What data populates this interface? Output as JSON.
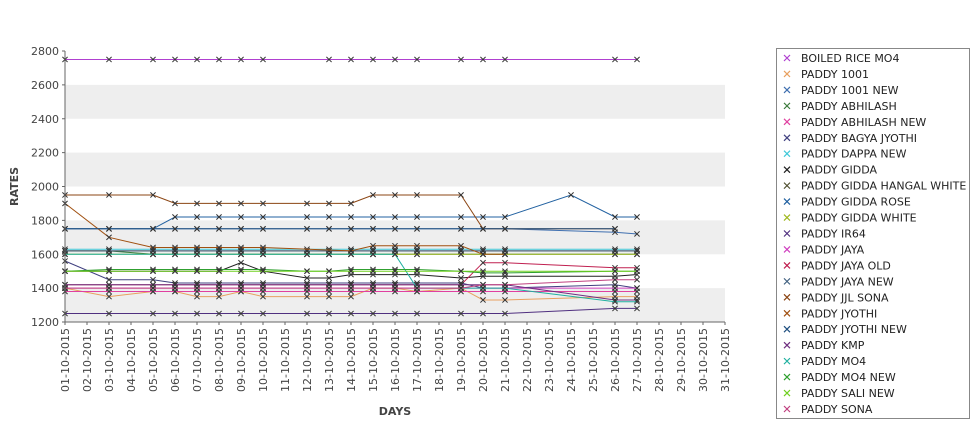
{
  "chart_data": {
    "type": "line",
    "xlabel": "DAYS",
    "ylabel": "RATES",
    "ylim": [
      1200,
      2800
    ],
    "yticks": [
      1200,
      1400,
      1600,
      1800,
      2000,
      2200,
      2400,
      2600,
      2800
    ],
    "x": [
      "01-10-2015",
      "02-10-2015",
      "03-10-2015",
      "04-10-2015",
      "05-10-2015",
      "06-10-2015",
      "07-10-2015",
      "08-10-2015",
      "09-10-2015",
      "10-10-2015",
      "11-10-2015",
      "12-10-2015",
      "13-10-2015",
      "14-10-2015",
      "15-10-2015",
      "16-10-2015",
      "17-10-2015",
      "18-10-2015",
      "19-10-2015",
      "20-10-2015",
      "21-10-2015",
      "22-10-2015",
      "23-10-2015",
      "24-10-2015",
      "25-10-2015",
      "26-10-2015",
      "27-10-2015",
      "28-10-2015",
      "29-10-2015",
      "30-10-2015",
      "31-10-2015"
    ],
    "grid": "alternating horizontal bands",
    "legend_position": "right",
    "series": [
      {
        "name": "BOILED RICE MO4",
        "color": "#b040d0",
        "values": [
          2750,
          null,
          2750,
          null,
          2750,
          2750,
          2750,
          2750,
          2750,
          2750,
          null,
          null,
          2750,
          2750,
          2750,
          2750,
          2750,
          null,
          2750,
          2750,
          2750,
          null,
          null,
          null,
          null,
          2750,
          2750,
          null,
          null,
          null,
          null
        ]
      },
      {
        "name": "PADDY 1001",
        "color": "#e8a060",
        "values": [
          1400,
          null,
          1350,
          null,
          1380,
          1380,
          1350,
          1350,
          1380,
          1350,
          null,
          1350,
          1350,
          1350,
          1400,
          1400,
          1380,
          null,
          1400,
          1330,
          1330,
          null,
          null,
          null,
          null,
          1350,
          1350,
          null,
          null,
          null,
          null
        ]
      },
      {
        "name": "PADDY 1001 NEW",
        "color": "#4070b0",
        "values": [
          1750,
          null,
          1750,
          null,
          1750,
          1750,
          1750,
          1750,
          1750,
          1750,
          null,
          1750,
          1750,
          1750,
          1750,
          1750,
          1750,
          null,
          1750,
          1750,
          1750,
          null,
          null,
          null,
          null,
          1730,
          1720,
          null,
          null,
          null,
          null
        ]
      },
      {
        "name": "PADDY ABHILASH",
        "color": "#3a7a3a",
        "values": [
          1620,
          null,
          1620,
          null,
          1600,
          1600,
          1600,
          1600,
          1600,
          1600,
          null,
          1600,
          1600,
          1600,
          1600,
          1600,
          1600,
          null,
          1600,
          1600,
          1600,
          null,
          null,
          null,
          null,
          1600,
          1600,
          null,
          null,
          null,
          null
        ]
      },
      {
        "name": "PADDY ABHILASH NEW",
        "color": "#e040a0",
        "values": [
          1380,
          null,
          1380,
          null,
          1380,
          1380,
          1380,
          1380,
          1380,
          1380,
          null,
          1380,
          1380,
          1380,
          1380,
          1380,
          1380,
          null,
          1380,
          1380,
          1380,
          null,
          null,
          null,
          null,
          1380,
          1380,
          null,
          null,
          null,
          null
        ]
      },
      {
        "name": "PADDY BAGYA JYOTHI",
        "color": "#404080",
        "values": [
          1560,
          null,
          1450,
          null,
          1450,
          1430,
          1430,
          1430,
          1430,
          1430,
          null,
          1430,
          1430,
          1430,
          1430,
          1430,
          1430,
          null,
          1430,
          1400,
          1400,
          null,
          null,
          null,
          null,
          1420,
          1400,
          null,
          null,
          null,
          null
        ]
      },
      {
        "name": "PADDY DAPPA NEW",
        "color": "#40c8d8",
        "values": [
          1630,
          null,
          1630,
          null,
          1630,
          1630,
          1630,
          1630,
          1630,
          1630,
          null,
          1630,
          1630,
          1630,
          1630,
          1630,
          1630,
          null,
          1630,
          1630,
          1630,
          null,
          null,
          null,
          null,
          1630,
          1630,
          null,
          null,
          null,
          null
        ]
      },
      {
        "name": "PADDY GIDDA",
        "color": "#202020",
        "values": [
          1500,
          null,
          1500,
          null,
          1500,
          1500,
          1500,
          1500,
          1550,
          1500,
          null,
          1460,
          1460,
          1480,
          1480,
          1480,
          1480,
          null,
          1460,
          1470,
          1470,
          null,
          null,
          null,
          null,
          1470,
          1480,
          null,
          null,
          null,
          null
        ]
      },
      {
        "name": "PADDY GIDDA HANGAL WHITE",
        "color": "#505030",
        "values": [
          1620,
          null,
          1620,
          null,
          1620,
          1620,
          1620,
          1620,
          1620,
          1620,
          null,
          1620,
          1620,
          1620,
          1620,
          1620,
          1620,
          null,
          1620,
          1620,
          1620,
          null,
          null,
          null,
          null,
          1620,
          1620,
          null,
          null,
          null,
          null
        ]
      },
      {
        "name": "PADDY GIDDA ROSE",
        "color": "#2060a0",
        "values": [
          1750,
          null,
          1750,
          null,
          1750,
          1820,
          1820,
          1820,
          1820,
          1820,
          null,
          1820,
          1820,
          1820,
          1820,
          1820,
          1820,
          null,
          1820,
          1820,
          1820,
          null,
          null,
          1950,
          null,
          1820,
          1820,
          null,
          null,
          null,
          null
        ]
      },
      {
        "name": "PADDY GIDDA WHITE",
        "color": "#a0b820",
        "values": [
          1600,
          null,
          1600,
          null,
          1600,
          1600,
          1600,
          1600,
          1600,
          1600,
          null,
          1600,
          1600,
          1600,
          1600,
          1600,
          1600,
          null,
          1600,
          1600,
          1600,
          null,
          null,
          null,
          null,
          1600,
          1600,
          null,
          null,
          null,
          null
        ]
      },
      {
        "name": "PADDY IR64",
        "color": "#503080",
        "values": [
          1250,
          null,
          1250,
          null,
          1250,
          1250,
          1250,
          1250,
          1250,
          1250,
          null,
          1250,
          1250,
          1250,
          1250,
          1250,
          1250,
          null,
          1250,
          1250,
          1250,
          null,
          null,
          null,
          null,
          1280,
          1280,
          null,
          null,
          null,
          null
        ]
      },
      {
        "name": "PADDY JAYA",
        "color": "#d040c0",
        "values": [
          1400,
          null,
          1400,
          null,
          1400,
          1400,
          1400,
          1400,
          1400,
          1400,
          null,
          1400,
          1400,
          1400,
          1400,
          1400,
          1400,
          null,
          1400,
          1400,
          1400,
          null,
          null,
          null,
          null,
          1400,
          1400,
          null,
          null,
          null,
          null
        ]
      },
      {
        "name": "PADDY JAYA  OLD",
        "color": "#c02050",
        "values": [
          1420,
          null,
          1420,
          null,
          1420,
          1420,
          1420,
          1420,
          1420,
          1420,
          null,
          1420,
          1420,
          1420,
          1420,
          1420,
          1420,
          null,
          1420,
          1550,
          1550,
          null,
          null,
          null,
          null,
          1520,
          1520,
          null,
          null,
          null,
          null
        ]
      },
      {
        "name": "PADDY JAYA NEW",
        "color": "#406080",
        "values": [
          1620,
          null,
          1620,
          null,
          1620,
          1620,
          1620,
          1620,
          1620,
          1620,
          null,
          1620,
          1620,
          1620,
          1620,
          1620,
          1620,
          null,
          1620,
          1620,
          1620,
          null,
          null,
          null,
          null,
          1620,
          1620,
          null,
          null,
          null,
          null
        ]
      },
      {
        "name": "PADDY JJL SONA",
        "color": "#8b4513",
        "values": [
          1950,
          null,
          1950,
          null,
          1950,
          1900,
          1900,
          1900,
          1900,
          1900,
          null,
          1900,
          1900,
          1900,
          1950,
          1950,
          1950,
          null,
          1950,
          1750,
          1750,
          null,
          null,
          null,
          null,
          1750,
          null,
          null,
          null,
          null,
          null
        ]
      },
      {
        "name": "PADDY JYOTHI",
        "color": "#a05010",
        "values": [
          1900,
          null,
          1700,
          null,
          1640,
          1640,
          1640,
          1640,
          1640,
          1640,
          null,
          null,
          null,
          1620,
          1650,
          1650,
          1650,
          null,
          1650,
          1600,
          1600,
          null,
          null,
          null,
          null,
          null,
          null,
          null,
          null,
          null,
          null
        ]
      },
      {
        "name": "PADDY JYOTHI NEW",
        "color": "#205080",
        "values": [
          1750,
          null,
          1750,
          null,
          1750,
          1750,
          1750,
          1750,
          1750,
          1750,
          null,
          1750,
          1750,
          1750,
          1750,
          1750,
          1750,
          null,
          1750,
          1750,
          1750,
          null,
          null,
          null,
          null,
          1750,
          null,
          null,
          null,
          null,
          null
        ]
      },
      {
        "name": "PADDY KMP",
        "color": "#703080",
        "values": [
          1420,
          null,
          1420,
          null,
          1420,
          1420,
          1420,
          1420,
          1420,
          1420,
          null,
          1420,
          1420,
          1420,
          1420,
          1420,
          1420,
          null,
          1420,
          1420,
          1420,
          null,
          null,
          null,
          null,
          1330,
          1330,
          null,
          null,
          null,
          null
        ]
      },
      {
        "name": "PADDY MO4",
        "color": "#20b0a0",
        "values": [
          1600,
          null,
          1600,
          null,
          1600,
          1600,
          1600,
          1600,
          1600,
          1600,
          null,
          1600,
          1600,
          1600,
          1600,
          1600,
          1400,
          null,
          1400,
          1400,
          1400,
          null,
          null,
          null,
          null,
          1320,
          1320,
          null,
          null,
          null,
          null
        ]
      },
      {
        "name": "PADDY MO4 NEW",
        "color": "#30a030",
        "values": [
          1500,
          null,
          1510,
          null,
          1510,
          1510,
          1510,
          1510,
          1510,
          1510,
          null,
          1500,
          1500,
          1510,
          1510,
          1510,
          1510,
          null,
          1500,
          1490,
          1490,
          null,
          null,
          null,
          null,
          1500,
          1500,
          null,
          null,
          null,
          null
        ]
      },
      {
        "name": "PADDY SALI NEW",
        "color": "#70d020",
        "values": [
          1500,
          null,
          1500,
          null,
          1500,
          1500,
          1500,
          1500,
          1500,
          1500,
          null,
          1500,
          1500,
          1500,
          1500,
          1500,
          1500,
          null,
          1500,
          1500,
          1500,
          null,
          null,
          null,
          null,
          1500,
          1500,
          null,
          null,
          null,
          null
        ]
      },
      {
        "name": "PADDY SONA",
        "color": "#c04080",
        "values": [
          1400,
          null,
          1400,
          null,
          1400,
          1400,
          1400,
          1400,
          1400,
          1400,
          null,
          1400,
          1400,
          1400,
          1400,
          1400,
          1400,
          null,
          1400,
          1420,
          1420,
          null,
          null,
          null,
          null,
          1450,
          1450,
          null,
          null,
          null,
          null
        ]
      }
    ]
  }
}
